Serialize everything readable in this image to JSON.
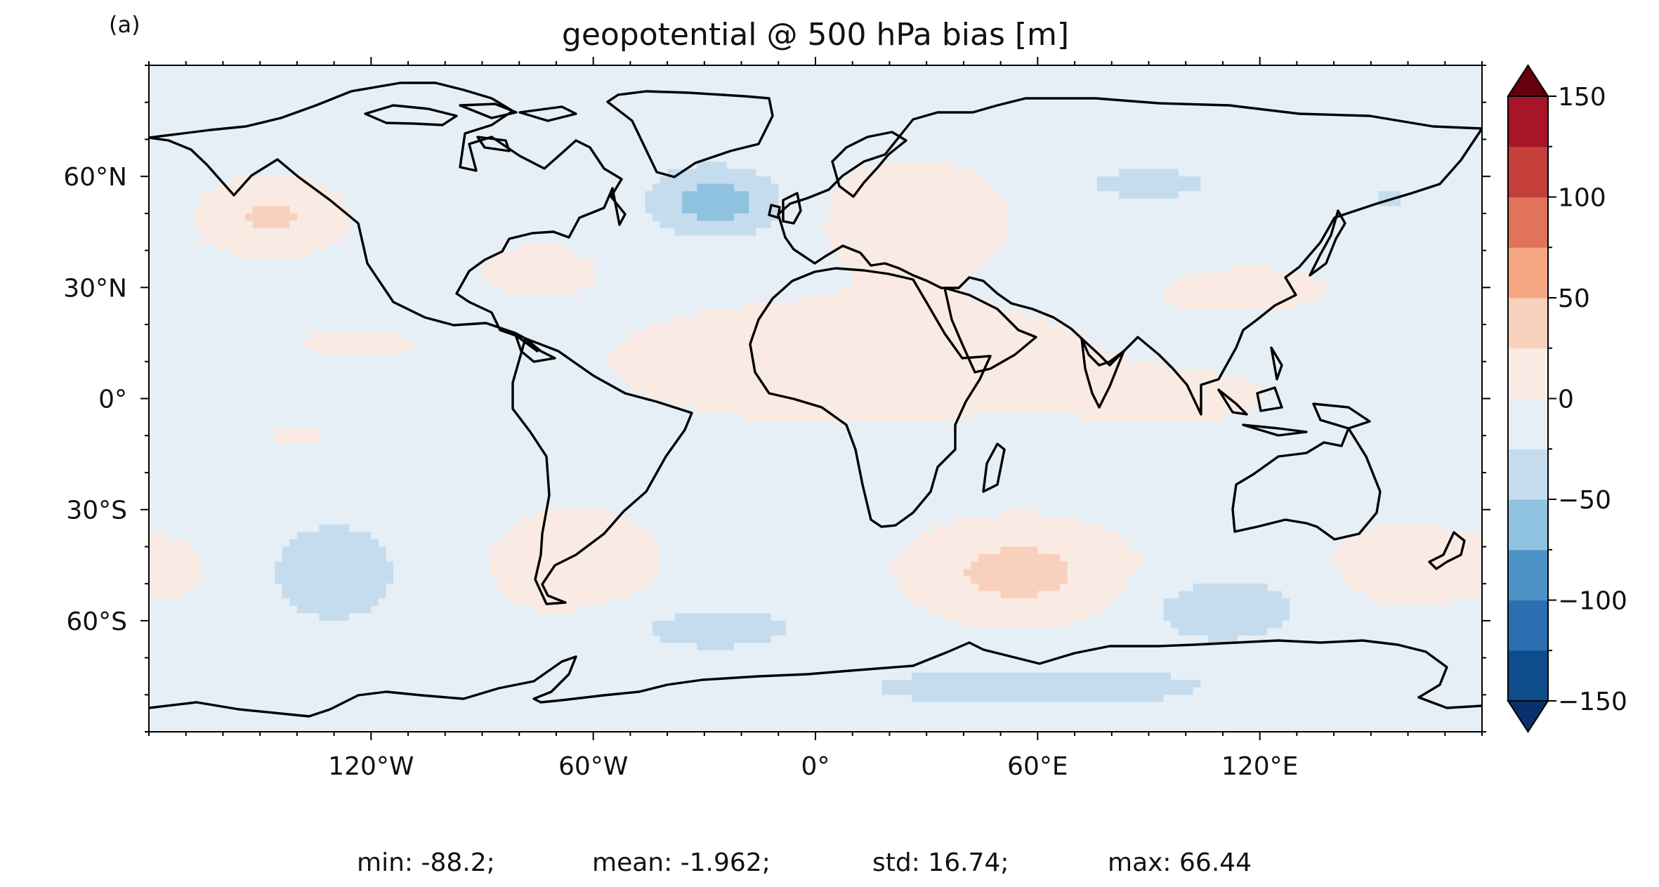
{
  "panel_label": "(a)",
  "title": "geopotential @ 500 hPa bias [m]",
  "stats": {
    "min": "min: -88.2;",
    "mean": "mean: -1.962;",
    "std": "std: 16.74;",
    "max": "max: 66.44"
  },
  "map": {
    "projection": "PlateCarree",
    "lon_range": [
      -180,
      180
    ],
    "lat_range": [
      -90,
      90
    ],
    "lon_ticks": [
      {
        "value": -120,
        "label": "120°W"
      },
      {
        "value": -60,
        "label": "60°W"
      },
      {
        "value": 0,
        "label": "0°"
      },
      {
        "value": 60,
        "label": "60°E"
      },
      {
        "value": 120,
        "label": "120°E"
      }
    ],
    "lat_ticks": [
      {
        "value": 60,
        "label": "60°N"
      },
      {
        "value": 30,
        "label": "30°N"
      },
      {
        "value": 0,
        "label": "0°"
      },
      {
        "value": -30,
        "label": "30°S"
      },
      {
        "value": -60,
        "label": "60°S"
      }
    ],
    "minor_tick_step_deg": 10
  },
  "colorbar": {
    "levels": [
      -150,
      -125,
      -100,
      -75,
      -50,
      -25,
      0,
      25,
      50,
      75,
      100,
      125,
      150
    ],
    "colors": [
      "#0f4c8c",
      "#2a6fb0",
      "#4a92c6",
      "#8fc2df",
      "#c4dcee",
      "#e6eff6",
      "#f9ebe3",
      "#f8d1bd",
      "#f4a683",
      "#e0735a",
      "#c53f3b",
      "#a81528"
    ],
    "under_color": "#08306b",
    "over_color": "#67000d",
    "extend": "both",
    "tick_labels": [
      {
        "value": 150,
        "label": "150"
      },
      {
        "value": 100,
        "label": "100"
      },
      {
        "value": 50,
        "label": "50"
      },
      {
        "value": 0,
        "label": "0"
      },
      {
        "value": -50,
        "label": "−50"
      },
      {
        "value": -100,
        "label": "−100"
      },
      {
        "value": -150,
        "label": "−150"
      }
    ]
  },
  "bias_field": {
    "background_value": -10,
    "anomalies": [
      {
        "lon": -147,
        "lat": 49,
        "rlon": 18,
        "rlat": 10,
        "value": 40
      },
      {
        "lon": -27,
        "lat": 53,
        "rlon": 17,
        "rlat": 9,
        "value": -55
      },
      {
        "lon": 27,
        "lat": 50,
        "rlon": 24,
        "rlat": 14,
        "value": 30
      },
      {
        "lon": 90,
        "lat": 58,
        "rlon": 24,
        "rlat": 6,
        "value": -22
      },
      {
        "lon": 155,
        "lat": 54,
        "rlon": 10,
        "rlat": 5,
        "value": -18
      },
      {
        "lon": 10,
        "lat": 10,
        "rlon": 85,
        "rlat": 22,
        "value": 18
      },
      {
        "lon": -75,
        "lat": 35,
        "rlon": 15,
        "rlat": 7,
        "value": 22
      },
      {
        "lon": -125,
        "lat": 15,
        "rlon": 20,
        "rlat": 5,
        "value": 15
      },
      {
        "lon": -140,
        "lat": -10,
        "rlon": 12,
        "rlat": 4,
        "value": 14
      },
      {
        "lon": -130,
        "lat": -47,
        "rlon": 20,
        "rlat": 16,
        "value": -28
      },
      {
        "lon": -65,
        "lat": -45,
        "rlon": 22,
        "rlat": 15,
        "value": 30
      },
      {
        "lon": -175,
        "lat": -46,
        "rlon": 10,
        "rlat": 8,
        "value": 20
      },
      {
        "lon": 55,
        "lat": -47,
        "rlon": 28,
        "rlat": 13,
        "value": 45
      },
      {
        "lon": 110,
        "lat": -57,
        "rlon": 22,
        "rlat": 9,
        "value": -32
      },
      {
        "lon": -30,
        "lat": -62,
        "rlon": 35,
        "rlat": 8,
        "value": -22
      },
      {
        "lon": 160,
        "lat": -45,
        "rlon": 22,
        "rlat": 12,
        "value": 24
      },
      {
        "lon": 100,
        "lat": 0,
        "rlon": 30,
        "rlat": 8,
        "value": 12
      },
      {
        "lon": 120,
        "lat": 30,
        "rlon": 35,
        "rlat": 10,
        "value": 12
      },
      {
        "lon": 60,
        "lat": -78,
        "rlon": 70,
        "rlat": 8,
        "value": -22
      }
    ]
  }
}
